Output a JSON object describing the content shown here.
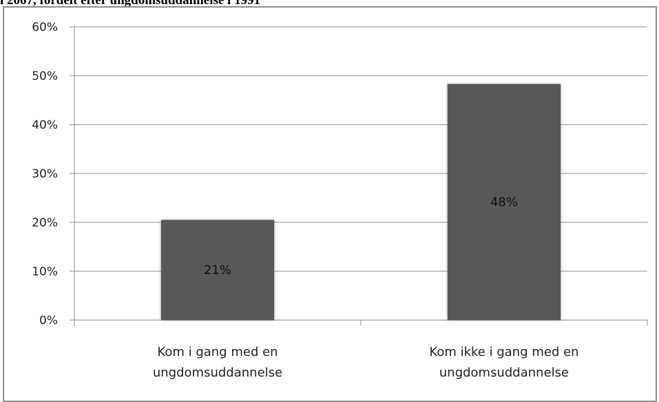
{
  "header": {
    "title": "i 2007, fordelt efter ungdomsuddannelse i 1991"
  },
  "chart_data": {
    "type": "bar",
    "categories": [
      [
        "Kom i gang med en",
        "ungdomsuddannelse"
      ],
      [
        "Kom ikke i gang med en",
        "ungdomsuddannelse"
      ]
    ],
    "values": [
      20.5,
      48.3
    ],
    "data_labels": [
      "21%",
      "48%"
    ],
    "ylim": [
      0,
      60
    ],
    "yticks": [
      0,
      10,
      20,
      30,
      40,
      50,
      60
    ],
    "ytick_labels": [
      "0%",
      "10%",
      "20%",
      "30%",
      "40%",
      "50%",
      "60%"
    ],
    "grid": true,
    "bar_color": "#595959",
    "grid_color": "#8c8c8c"
  }
}
